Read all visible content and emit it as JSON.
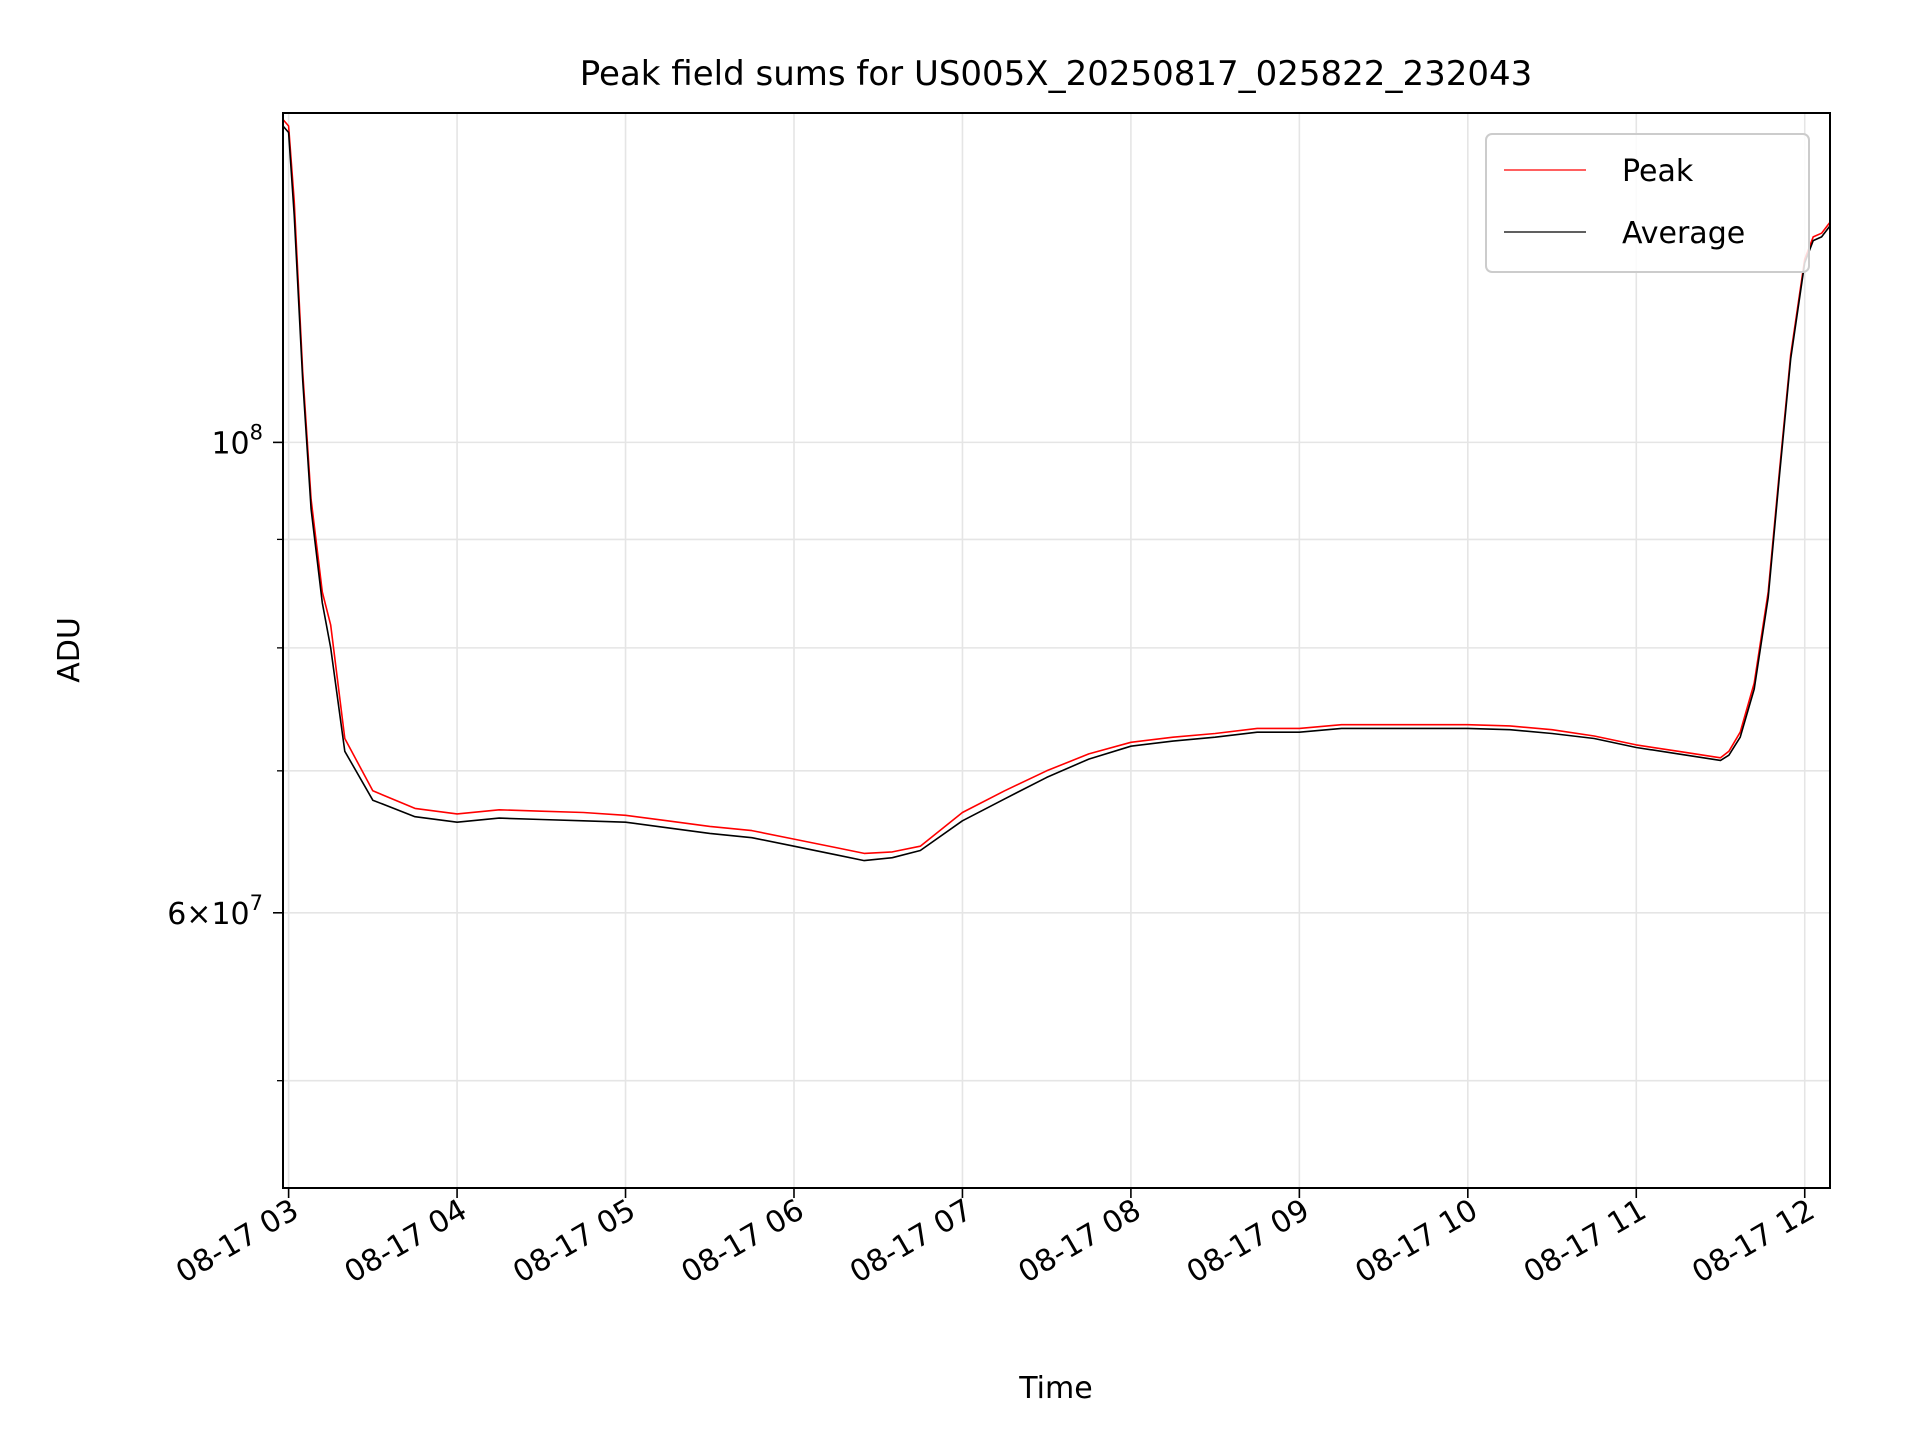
{
  "chart_data": {
    "type": "line",
    "title": "Peak field sums for US005X_20250817_025822_232043",
    "xlabel": "Time",
    "ylabel": "ADU",
    "x_ticks": [
      "08-17 03",
      "08-17 04",
      "08-17 05",
      "08-17 06",
      "08-17 07",
      "08-17 08",
      "08-17 09",
      "08-17 10",
      "08-17 11",
      "08-17 12"
    ],
    "y_ticks_major": [
      {
        "value": 60000000,
        "base": "6×10",
        "exp": "7"
      },
      {
        "value": 100000000,
        "base": "10",
        "exp": "8"
      }
    ],
    "y_ticks_minor": [
      50000000,
      70000000,
      80000000,
      90000000
    ],
    "y_scale": "log",
    "ylim": [
      44500000,
      143000000
    ],
    "xlim": [
      "2025-08-17 02:58",
      "2025-08-17 12:09"
    ],
    "grid": true,
    "legend_position": "top-right",
    "colors": {
      "peak": "#ff0000",
      "average": "#000000"
    },
    "series": [
      {
        "name": "Peak",
        "color": "#ff0000",
        "x": [
          "02:58",
          "03:00",
          "03:02",
          "03:05",
          "03:08",
          "03:12",
          "03:15",
          "03:20",
          "03:30",
          "03:45",
          "04:00",
          "04:15",
          "04:30",
          "04:45",
          "05:00",
          "05:15",
          "05:30",
          "05:45",
          "06:00",
          "06:15",
          "06:25",
          "06:35",
          "06:45",
          "07:00",
          "07:15",
          "07:30",
          "07:45",
          "08:00",
          "08:15",
          "08:30",
          "08:45",
          "09:00",
          "09:15",
          "09:30",
          "09:45",
          "10:00",
          "10:15",
          "10:30",
          "10:45",
          "11:00",
          "11:15",
          "11:30",
          "11:33",
          "11:37",
          "11:42",
          "11:47",
          "11:51",
          "11:55",
          "12:00",
          "12:03",
          "12:06",
          "12:09"
        ],
        "y": [
          142000000,
          141000000,
          130000000,
          108000000,
          94000000,
          85000000,
          82000000,
          72500000,
          68500000,
          67200000,
          66800000,
          67100000,
          67000000,
          66900000,
          66700000,
          66300000,
          65900000,
          65600000,
          65000000,
          64400000,
          64000000,
          64100000,
          64500000,
          66900000,
          68500000,
          70000000,
          71300000,
          72200000,
          72600000,
          72900000,
          73300000,
          73300000,
          73600000,
          73600000,
          73600000,
          73600000,
          73500000,
          73200000,
          72700000,
          72000000,
          71500000,
          71000000,
          71500000,
          73000000,
          77000000,
          85000000,
          97000000,
          110000000,
          122000000,
          125000000,
          125500000,
          127000000
        ]
      },
      {
        "name": "Average",
        "color": "#000000",
        "x": [
          "02:58",
          "03:00",
          "03:02",
          "03:05",
          "03:08",
          "03:12",
          "03:15",
          "03:20",
          "03:30",
          "03:45",
          "04:00",
          "04:15",
          "04:30",
          "04:45",
          "05:00",
          "05:15",
          "05:30",
          "05:45",
          "06:00",
          "06:15",
          "06:25",
          "06:35",
          "06:45",
          "07:00",
          "07:15",
          "07:30",
          "07:45",
          "08:00",
          "08:15",
          "08:30",
          "08:45",
          "09:00",
          "09:15",
          "09:30",
          "09:45",
          "10:00",
          "10:15",
          "10:30",
          "10:45",
          "11:00",
          "11:15",
          "11:30",
          "11:33",
          "11:37",
          "11:42",
          "11:47",
          "11:51",
          "11:55",
          "12:00",
          "12:03",
          "12:06",
          "12:09"
        ],
        "y": [
          141000000,
          140000000,
          128000000,
          107000000,
          93000000,
          84000000,
          80000000,
          71500000,
          67800000,
          66600000,
          66200000,
          66500000,
          66400000,
          66300000,
          66200000,
          65800000,
          65400000,
          65100000,
          64500000,
          63900000,
          63500000,
          63700000,
          64200000,
          66300000,
          67900000,
          69500000,
          70900000,
          71900000,
          72300000,
          72600000,
          73000000,
          73000000,
          73300000,
          73300000,
          73300000,
          73300000,
          73200000,
          72900000,
          72500000,
          71800000,
          71300000,
          70800000,
          71200000,
          72600000,
          76500000,
          84500000,
          96500000,
          109500000,
          121500000,
          124500000,
          125000000,
          126500000
        ]
      }
    ]
  }
}
